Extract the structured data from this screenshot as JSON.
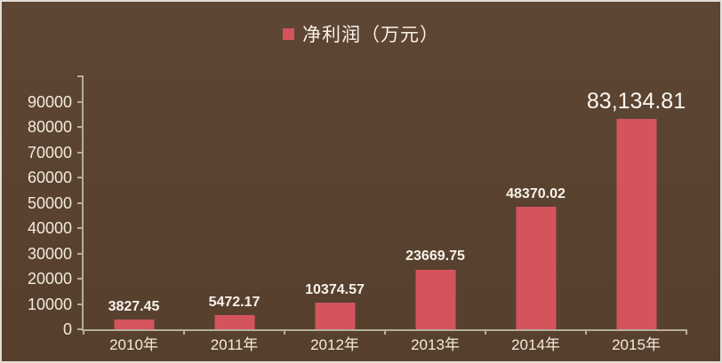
{
  "legend": {
    "label": "净利润（万元）",
    "swatch": "red-square"
  },
  "colors": {
    "background_top": "#5e4634",
    "background_bottom": "#573f2e",
    "bar": "#d4545e",
    "axis": "#b5ada0",
    "text_cream": "#f2ebdd",
    "text_bright": "#f7f2e9"
  },
  "chart_data": {
    "type": "bar",
    "title": "净利润（万元）",
    "legend_position": "top",
    "grid": false,
    "categories": [
      "2010年",
      "2011年",
      "2012年",
      "2013年",
      "2014年",
      "2015年"
    ],
    "values": [
      3827.45,
      5472.17,
      10374.57,
      23669.75,
      48370.02,
      83134.81
    ],
    "data_labels": [
      "3827.45",
      "5472.17",
      "10374.57",
      "23669.75",
      "48370.02",
      "83,134.81"
    ],
    "highlight_last_label": true,
    "xlabel": "",
    "ylabel": "",
    "ylim": [
      0,
      100000
    ],
    "yticks": [
      0,
      10000,
      20000,
      30000,
      40000,
      50000,
      60000,
      70000,
      80000,
      90000
    ],
    "ytick_labels": [
      "0",
      "10000",
      "20000",
      "30000",
      "40000",
      "50000",
      "60000",
      "70000",
      "80000",
      "90000"
    ]
  }
}
